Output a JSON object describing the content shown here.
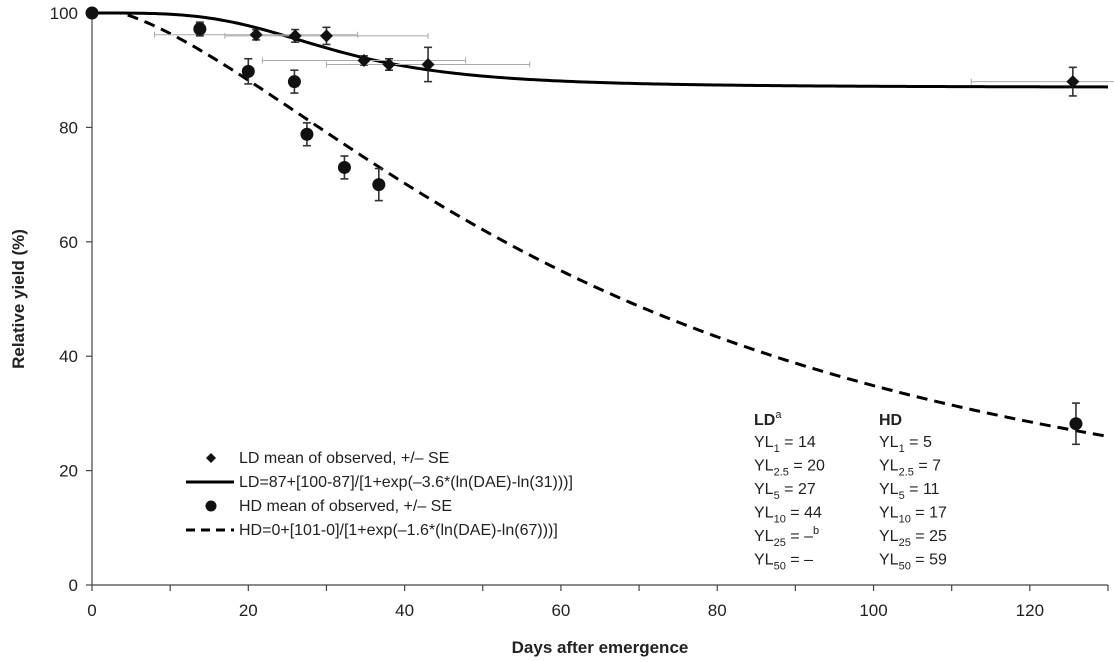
{
  "chart_data": {
    "type": "scatter",
    "xlabel": "Days after emergence",
    "ylabel": "Relative yield (%)",
    "xlim": [
      0,
      130
    ],
    "ylim": [
      0,
      100
    ],
    "x_ticks": [
      0,
      20,
      40,
      60,
      80,
      100,
      120
    ],
    "y_ticks": [
      0,
      20,
      40,
      60,
      80,
      100
    ],
    "grid": false,
    "legend_position": "bottom-left",
    "series": [
      {
        "name": "LD mean of observed, +/– SE",
        "marker": "diamond",
        "color": "#111111",
        "points": [
          {
            "x": 0,
            "y": 100,
            "yerr": 0,
            "xerr": 0
          },
          {
            "x": 13.8,
            "y": 97.2,
            "yerr": 0.9,
            "xerr": 0
          },
          {
            "x": 21,
            "y": 96.2,
            "yerr": 0.9,
            "xerr": 13
          },
          {
            "x": 26,
            "y": 96.0,
            "yerr": 1.1,
            "xerr": 0
          },
          {
            "x": 30,
            "y": 96.0,
            "yerr": 1.5,
            "xerr": 13
          },
          {
            "x": 34.8,
            "y": 91.7,
            "yerr": 0.8,
            "xerr": 13
          },
          {
            "x": 38,
            "y": 91.0,
            "yerr": 1.0,
            "xerr": 0
          },
          {
            "x": 43,
            "y": 91.0,
            "yerr": 3.0,
            "xerr": 13
          },
          {
            "x": 125.5,
            "y": 88.0,
            "yerr": 2.5,
            "xerr": 13
          }
        ]
      },
      {
        "name": "HD mean of observed, +/– SE",
        "marker": "circle",
        "color": "#111111",
        "points": [
          {
            "x": 0,
            "y": 100,
            "yerr": 0
          },
          {
            "x": 13.8,
            "y": 97.2,
            "yerr": 1.2
          },
          {
            "x": 20,
            "y": 89.8,
            "yerr": 2.2
          },
          {
            "x": 25.9,
            "y": 88.0,
            "yerr": 2.0
          },
          {
            "x": 27.5,
            "y": 78.8,
            "yerr": 2.0
          },
          {
            "x": 32.3,
            "y": 73.0,
            "yerr": 2.0
          },
          {
            "x": 36.7,
            "y": 70.0,
            "yerr": 2.8
          },
          {
            "x": 125.9,
            "y": 28.2,
            "yerr": 3.6
          }
        ]
      }
    ],
    "fits": [
      {
        "name": "LD=87+[100-87]/[1+exp(–3.6*(ln(DAE)-ln(31)))]",
        "style": "solid",
        "lower": 87,
        "upper": 100,
        "b": 3.6,
        "e": 31
      },
      {
        "name": "HD=0+[101-0]/[1+exp(–1.6*(ln(DAE)-ln(67)))]",
        "style": "dashed",
        "lower": 0,
        "upper": 101,
        "b": 1.6,
        "e": 67
      }
    ],
    "yield_loss_table": {
      "ld": {
        "header": "LD",
        "header_sup": "a",
        "rows": [
          {
            "prefix": "YL",
            "sub": "1",
            "value": " = 14"
          },
          {
            "prefix": "YL",
            "sub": "2.5",
            "value": " = 20"
          },
          {
            "prefix": "YL",
            "sub": "5",
            "value": " = 27"
          },
          {
            "prefix": "YL",
            "sub": "10",
            "value": " = 44"
          },
          {
            "prefix": "YL",
            "sub": "25",
            "value": " = –",
            "sup": "b"
          },
          {
            "prefix": "YL",
            "sub": "50",
            "value": " = –"
          }
        ]
      },
      "hd": {
        "header": "HD",
        "rows": [
          {
            "prefix": "YL",
            "sub": "1",
            "value": " = 5"
          },
          {
            "prefix": "YL",
            "sub": "2.5",
            "value": " = 7"
          },
          {
            "prefix": "YL",
            "sub": "5",
            "value": " = 11"
          },
          {
            "prefix": "YL",
            "sub": "10",
            "value": " = 17"
          },
          {
            "prefix": "YL",
            "sub": "25",
            "value": " = 25"
          },
          {
            "prefix": "YL",
            "sub": "50",
            "value": " = 59"
          }
        ]
      }
    }
  }
}
